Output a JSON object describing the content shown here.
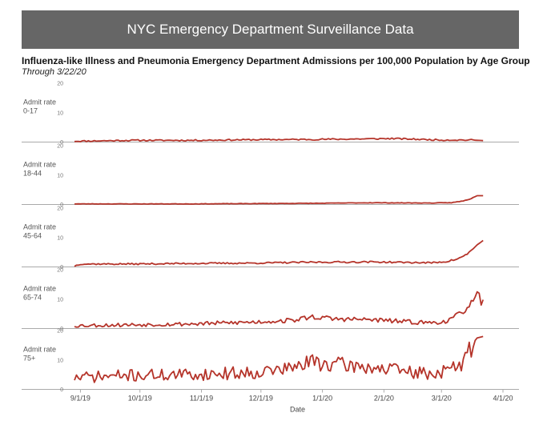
{
  "header": {
    "banner": "NYC Emergency Department Surveillance Data",
    "title": "Influenza-like Illness and Pneumonia Emergency Department Admissions per 100,000 Population by Age Group",
    "subtitle": "Through 3/22/20"
  },
  "colors": {
    "line": "#b5342a",
    "axis": "#aaaaaa",
    "banner": "#666666"
  },
  "chart_data": {
    "type": "line",
    "x_start": "2019-08-29",
    "x_end": "2020-03-22",
    "xlabel": "Date",
    "x_ticks": [
      "9/1/19",
      "10/1/19",
      "11/1/19",
      "12/1/19",
      "1/1/20",
      "2/1/20",
      "3/1/20",
      "4/1/20"
    ],
    "x_tick_days": [
      3,
      33,
      64,
      94,
      125,
      156,
      185,
      216
    ],
    "x_range_days": [
      0,
      216
    ],
    "ylim": [
      0,
      20
    ],
    "y_ticks": [
      0,
      10,
      20
    ],
    "panels": [
      {
        "label_line1": "Admit rate",
        "label_line2": "0-17",
        "keypoints": [
          [
            0,
            0.3
          ],
          [
            30,
            0.6
          ],
          [
            60,
            0.6
          ],
          [
            90,
            0.8
          ],
          [
            120,
            0.9
          ],
          [
            150,
            1.1
          ],
          [
            160,
            1.2
          ],
          [
            185,
            0.7
          ],
          [
            200,
            0.7
          ],
          [
            206,
            0.5
          ]
        ],
        "noise": 0.35,
        "seed": 11
      },
      {
        "label_line1": "Admit rate",
        "label_line2": "18-44",
        "keypoints": [
          [
            0,
            0.2
          ],
          [
            60,
            0.2
          ],
          [
            120,
            0.4
          ],
          [
            150,
            0.6
          ],
          [
            180,
            0.5
          ],
          [
            190,
            0.6
          ],
          [
            196,
            1.2
          ],
          [
            200,
            2.0
          ],
          [
            203,
            3.0
          ],
          [
            206,
            3.0
          ]
        ],
        "noise": 0.12,
        "seed": 23
      },
      {
        "label_line1": "Admit rate",
        "label_line2": "45-64",
        "keypoints": [
          [
            0,
            0.3
          ],
          [
            3,
            1.0
          ],
          [
            30,
            1.0
          ],
          [
            60,
            1.2
          ],
          [
            90,
            1.3
          ],
          [
            120,
            1.6
          ],
          [
            150,
            1.7
          ],
          [
            180,
            1.4
          ],
          [
            187,
            1.8
          ],
          [
            192,
            2.5
          ],
          [
            196,
            3.5
          ],
          [
            200,
            5.5
          ],
          [
            203,
            7.5
          ],
          [
            206,
            9.0
          ]
        ],
        "noise": 0.35,
        "seed": 37
      },
      {
        "label_line1": "Admit rate",
        "label_line2": "65-74",
        "keypoints": [
          [
            0,
            1.0
          ],
          [
            30,
            1.3
          ],
          [
            60,
            1.6
          ],
          [
            90,
            2.2
          ],
          [
            110,
            2.8
          ],
          [
            120,
            4.0
          ],
          [
            130,
            3.3
          ],
          [
            150,
            3.0
          ],
          [
            170,
            2.2
          ],
          [
            180,
            2.0
          ],
          [
            188,
            2.5
          ],
          [
            192,
            4.0
          ],
          [
            196,
            6.0
          ],
          [
            199,
            8.0
          ],
          [
            201,
            9.0
          ],
          [
            203,
            12.5
          ],
          [
            204,
            12.0
          ],
          [
            205,
            8.0
          ],
          [
            206,
            9.8
          ]
        ],
        "noise": 0.9,
        "seed": 53
      },
      {
        "label_line1": "Admit rate",
        "label_line2": "75+",
        "keypoints": [
          [
            0,
            4.0
          ],
          [
            30,
            4.8
          ],
          [
            60,
            5.0
          ],
          [
            90,
            5.8
          ],
          [
            110,
            7.2
          ],
          [
            120,
            9.5
          ],
          [
            130,
            8.5
          ],
          [
            150,
            7.5
          ],
          [
            170,
            5.8
          ],
          [
            180,
            5.2
          ],
          [
            188,
            6.5
          ],
          [
            194,
            8.0
          ],
          [
            198,
            11.0
          ],
          [
            200,
            15.0
          ],
          [
            203,
            17.5
          ],
          [
            206,
            18.0
          ]
        ],
        "noise": 1.9,
        "seed": 71
      }
    ]
  }
}
